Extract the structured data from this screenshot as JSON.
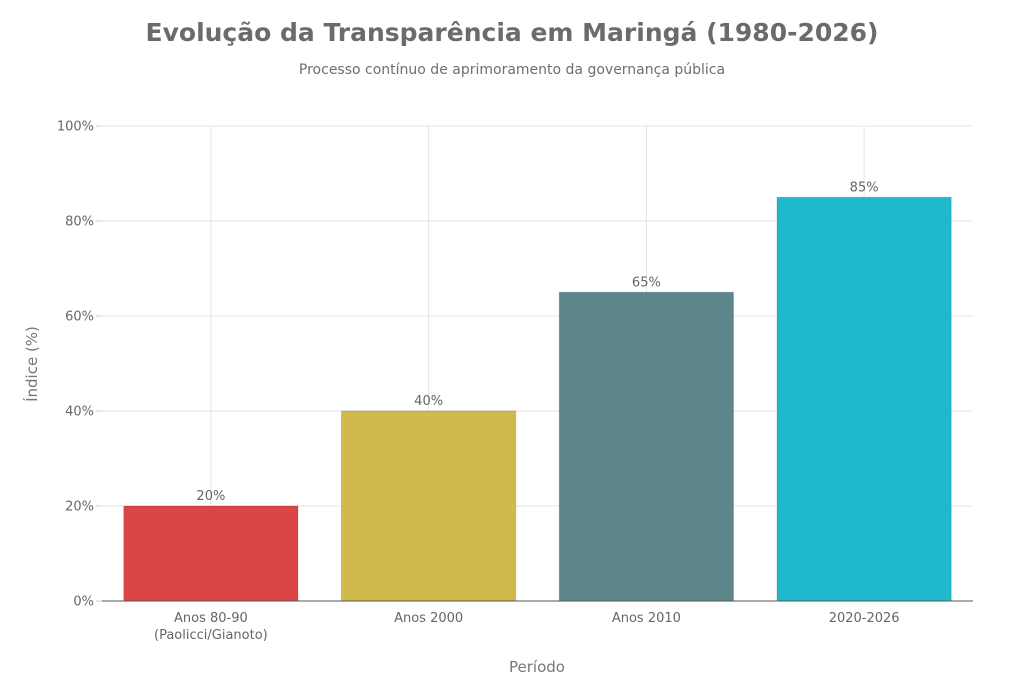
{
  "chart_data": {
    "type": "bar",
    "title": "Evolução da Transparência em Maringá (1980-2026)",
    "subtitle": "Processo contínuo de aprimoramento da governança pública",
    "xlabel": "Período",
    "ylabel": "Índice (%)",
    "categories": [
      [
        "Anos 80-90",
        "(Paolicci/Gianoto)"
      ],
      [
        "Anos 2000"
      ],
      [
        "Anos 2010"
      ],
      [
        "2020-2026"
      ]
    ],
    "values": [
      20,
      40,
      65,
      85
    ],
    "value_labels": [
      "20%",
      "40%",
      "65%",
      "85%"
    ],
    "colors": [
      "#db4545",
      "#d2b94c",
      "#5d868b",
      "#20b8cd"
    ],
    "ylim": [
      0,
      100
    ],
    "yticks": [
      0,
      20,
      40,
      60,
      80,
      100
    ],
    "ytick_labels": [
      "0%",
      "20%",
      "40%",
      "60%",
      "80%",
      "100%"
    ],
    "grid": true,
    "legend": "none"
  }
}
